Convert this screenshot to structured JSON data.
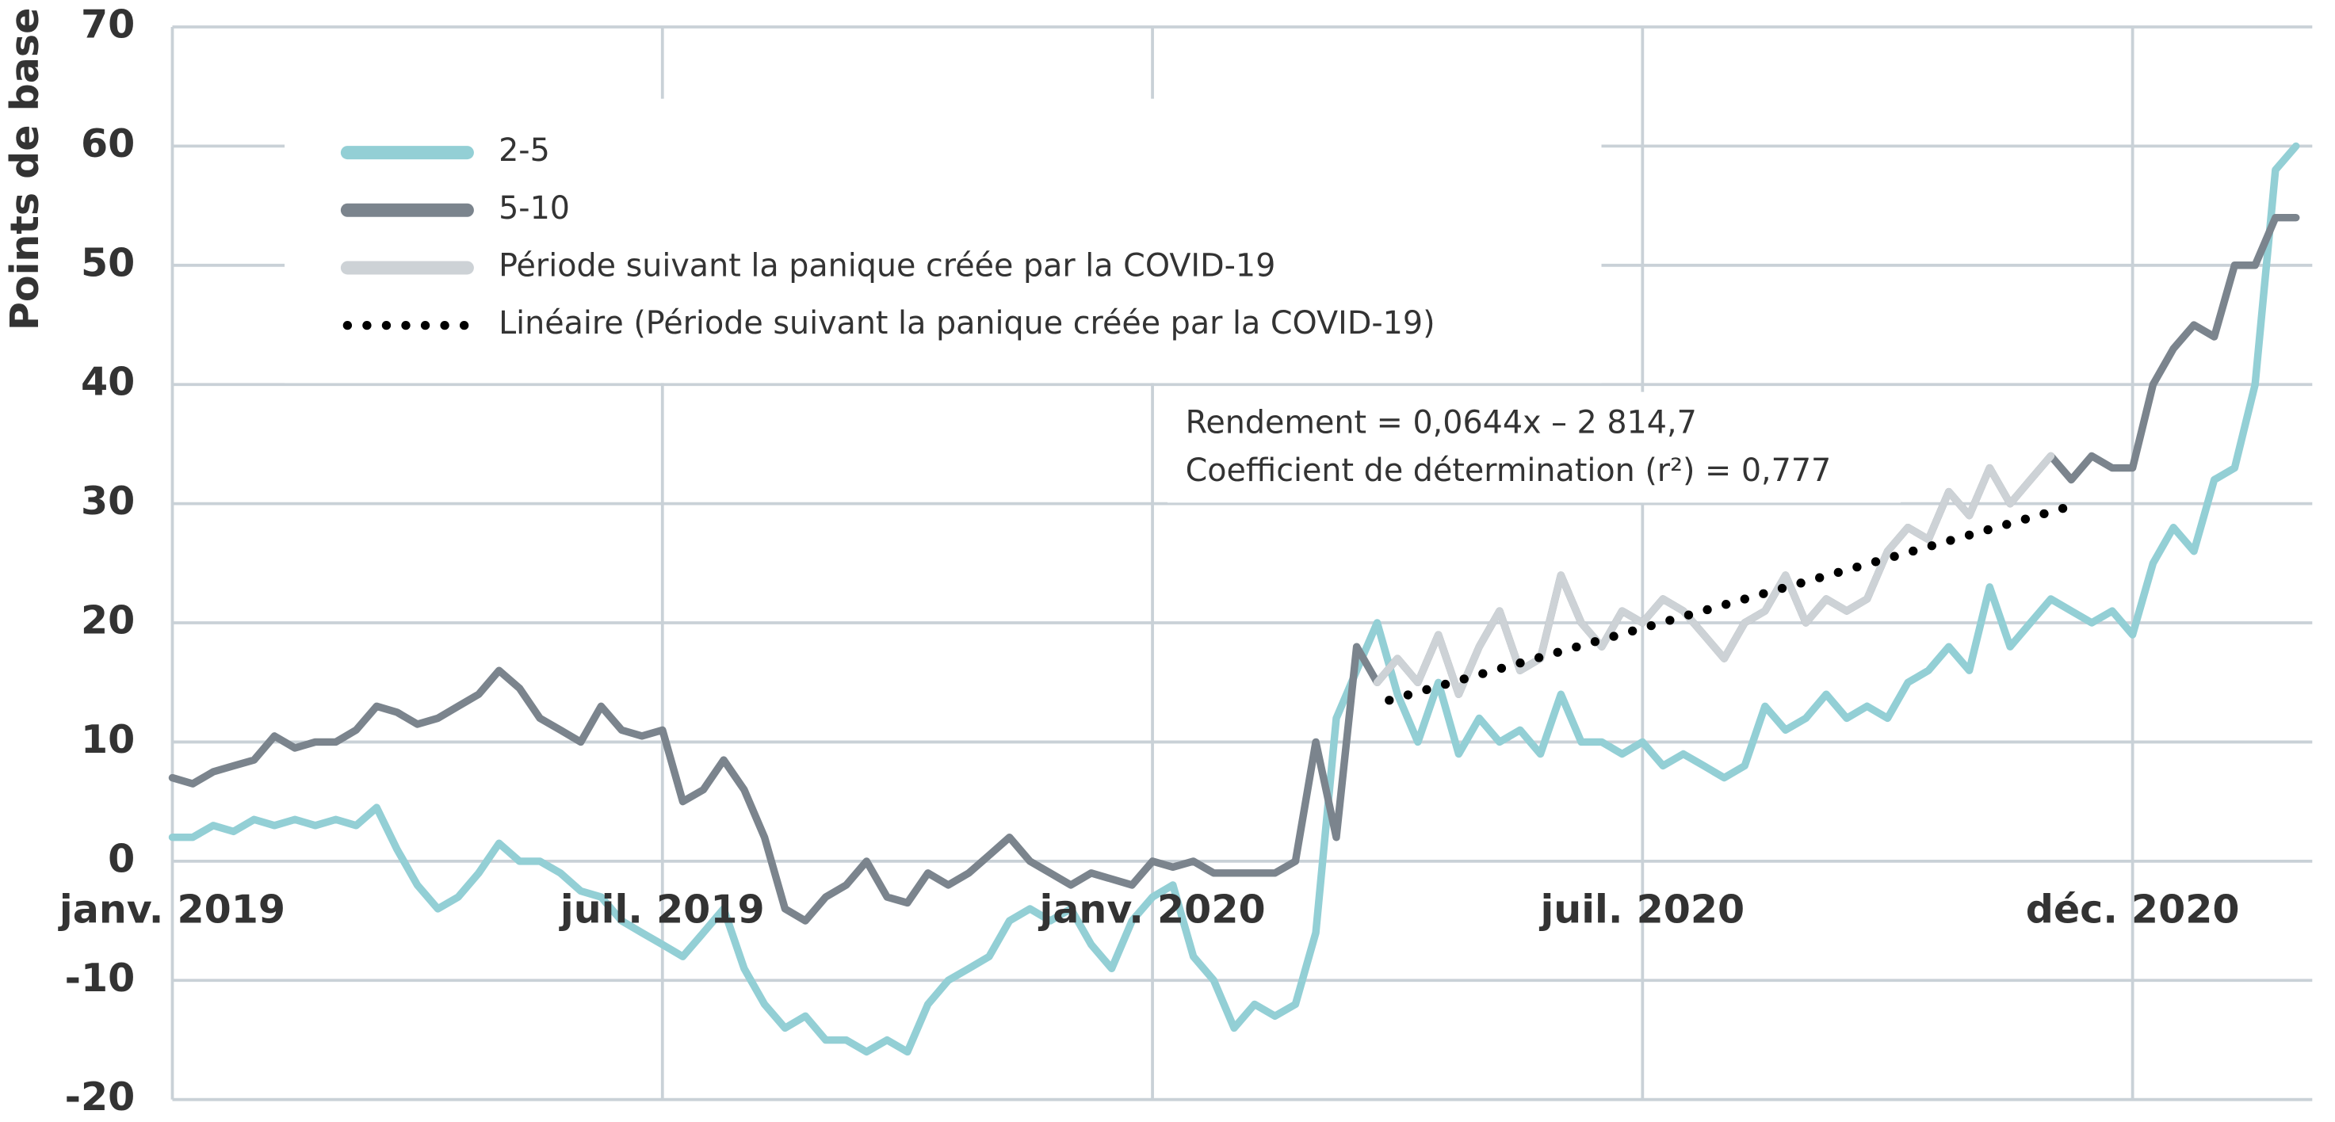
{
  "chart_data": {
    "type": "line",
    "ylabel": "Points de base",
    "annotations": [
      "Rendement = 0,0644x – 2 814,7",
      "Coefficient de détermination (r²) = 0,777"
    ],
    "x": [
      0,
      0.25,
      0.5,
      0.75,
      1,
      1.25,
      1.5,
      1.75,
      2,
      2.25,
      2.5,
      2.75,
      3,
      3.25,
      3.5,
      3.75,
      4,
      4.25,
      4.5,
      4.75,
      5,
      5.25,
      5.5,
      5.75,
      6,
      6.25,
      6.5,
      6.75,
      7,
      7.25,
      7.5,
      7.75,
      8,
      8.25,
      8.5,
      8.75,
      9,
      9.25,
      9.5,
      9.75,
      10,
      10.25,
      10.5,
      10.75,
      11,
      11.25,
      11.5,
      11.75,
      12,
      12.25,
      12.5,
      12.75,
      13,
      13.25,
      13.5,
      13.75,
      14,
      14.25,
      14.5,
      14.75,
      15,
      15.25,
      15.5,
      15.75,
      16,
      16.25,
      16.5,
      16.75,
      17,
      17.25,
      17.5,
      17.75,
      18,
      18.25,
      18.5,
      18.75,
      19,
      19.25,
      19.5,
      19.75,
      20,
      20.25,
      20.5,
      20.75,
      21,
      21.25,
      21.5,
      21.75,
      22,
      22.25,
      22.5,
      22.75,
      23,
      23.25,
      23.5,
      23.75,
      24,
      24.25,
      24.5,
      24.75,
      25,
      25.25,
      25.5,
      25.75,
      26
    ],
    "xlim": [
      0,
      26.2
    ],
    "xticks": [
      {
        "value": 0,
        "label": "janv. 2019"
      },
      {
        "value": 6,
        "label": "juil. 2019"
      },
      {
        "value": 12,
        "label": "janv. 2020"
      },
      {
        "value": 18,
        "label": "juil. 2020"
      },
      {
        "value": 24,
        "label": "déc. 2020"
      }
    ],
    "ylim": [
      -20,
      70
    ],
    "yticks": [
      70,
      60,
      50,
      40,
      30,
      20,
      10,
      0,
      -10,
      -20
    ],
    "grid": true,
    "series": [
      {
        "name": "2-5",
        "color": "#93cfd5",
        "values": [
          2,
          2,
          3,
          2.5,
          3.5,
          3,
          3.5,
          3,
          3.5,
          3,
          4.5,
          1,
          -2,
          -4,
          -3,
          -1,
          1.5,
          0,
          0,
          -1,
          -2.5,
          -3,
          -5,
          -6,
          -7,
          -8,
          -6,
          -4,
          -9,
          -12,
          -14,
          -13,
          -15,
          -15,
          -16,
          -15,
          -16,
          -12,
          -10,
          -9,
          -8,
          -5,
          -4,
          -5,
          -4,
          -7,
          -9,
          -5,
          -3,
          -2,
          -8,
          -10,
          -14,
          -12,
          -13,
          -12,
          -6,
          12,
          16,
          20,
          14,
          10,
          15,
          9,
          12,
          10,
          11,
          9,
          14,
          10,
          10,
          9,
          10,
          8,
          9,
          8,
          7,
          8,
          13,
          11,
          12,
          14,
          12,
          13,
          12,
          15,
          16,
          18,
          16,
          23,
          18,
          20,
          22,
          21,
          20,
          21,
          19,
          25,
          28,
          26,
          32,
          33,
          40,
          58,
          60
        ]
      },
      {
        "name": "5-10",
        "color": "#7b848d",
        "values": [
          7,
          6.5,
          7.5,
          8,
          8.5,
          10.5,
          9.5,
          10,
          10,
          11,
          13,
          12.5,
          11.5,
          12,
          13,
          14,
          16,
          14.5,
          12,
          11,
          10,
          13,
          11,
          10.5,
          11,
          5,
          6,
          8.5,
          6,
          2,
          -4,
          -5,
          -3,
          -2,
          0,
          -3,
          -3.5,
          -1,
          -2,
          -1,
          0.5,
          2,
          0,
          -1,
          -2,
          -1,
          -1.5,
          -2,
          0,
          -0.5,
          0,
          -1,
          -1,
          -1,
          -1,
          0,
          10,
          2,
          18,
          15,
          17,
          15,
          19,
          14,
          18,
          21,
          16,
          17,
          24,
          20,
          18,
          21,
          20,
          22,
          21,
          19,
          17,
          20,
          21,
          24,
          20,
          22,
          21,
          22,
          26,
          28,
          27,
          31,
          29,
          33,
          30,
          32,
          34,
          32,
          34,
          33,
          33,
          40,
          43,
          45,
          44,
          50,
          50,
          54,
          54
        ]
      },
      {
        "name": "Période suivant la panique créée par la COVID-19",
        "color": "#cdd2d6",
        "values": [
          null,
          null,
          null,
          null,
          null,
          null,
          null,
          null,
          null,
          null,
          null,
          null,
          null,
          null,
          null,
          null,
          null,
          null,
          null,
          null,
          null,
          null,
          null,
          null,
          null,
          null,
          null,
          null,
          null,
          null,
          null,
          null,
          null,
          null,
          null,
          null,
          null,
          null,
          null,
          null,
          null,
          null,
          null,
          null,
          null,
          null,
          null,
          null,
          null,
          null,
          null,
          null,
          null,
          null,
          null,
          null,
          null,
          null,
          null,
          15,
          17,
          15,
          19,
          14,
          18,
          21,
          16,
          17,
          24,
          20,
          18,
          21,
          20,
          22,
          21,
          19,
          17,
          20,
          21,
          24,
          20,
          22,
          21,
          22,
          26,
          28,
          27,
          31,
          29,
          33,
          30,
          32,
          34,
          null,
          null,
          null,
          null,
          null,
          null,
          null,
          null,
          null,
          null,
          null,
          null
        ]
      },
      {
        "name": "Linéaire (Période suivant la panique créée par la COVID-19)",
        "color": "#000000",
        "dash": "dotted",
        "x": [
          14.9,
          23.35
        ],
        "values": [
          13.5,
          30
        ]
      }
    ]
  }
}
